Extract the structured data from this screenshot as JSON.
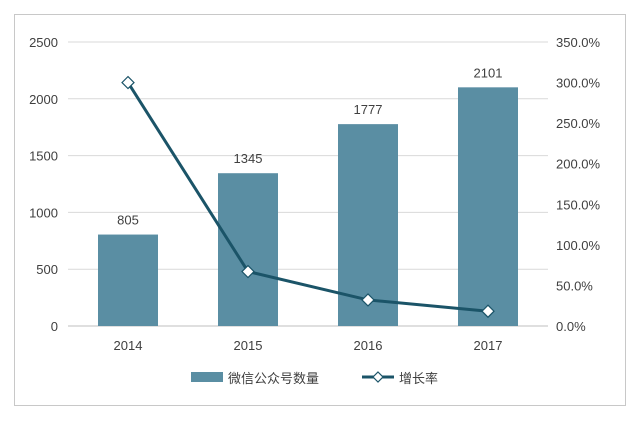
{
  "chart_data": {
    "type": "bar+line",
    "categories": [
      "2014",
      "2015",
      "2016",
      "2017"
    ],
    "series": [
      {
        "name": "微信公众号数量",
        "type": "bar",
        "axis": "left",
        "values": [
          805,
          1345,
          1777,
          2101
        ],
        "color": "#5a8ea3"
      },
      {
        "name": "增长率",
        "type": "line",
        "axis": "right",
        "values": [
          300.0,
          67.1,
          32.1,
          18.2
        ],
        "color": "#1b5468",
        "marker": "diamond-hollow"
      }
    ],
    "data_labels": [
      "805",
      "1345",
      "1777",
      "2101"
    ],
    "left_axis": {
      "ylim": [
        0,
        2500
      ],
      "ticks": [
        "0",
        "500",
        "1000",
        "1500",
        "2000",
        "2500"
      ]
    },
    "right_axis": {
      "ylim": [
        0,
        350
      ],
      "ticks": [
        "0.0%",
        "50.0%",
        "100.0%",
        "150.0%",
        "200.0%",
        "250.0%",
        "300.0%",
        "350.0%"
      ]
    },
    "grid": true,
    "legend": "bottom",
    "title": "",
    "xlabel": "",
    "ylabel": ""
  }
}
